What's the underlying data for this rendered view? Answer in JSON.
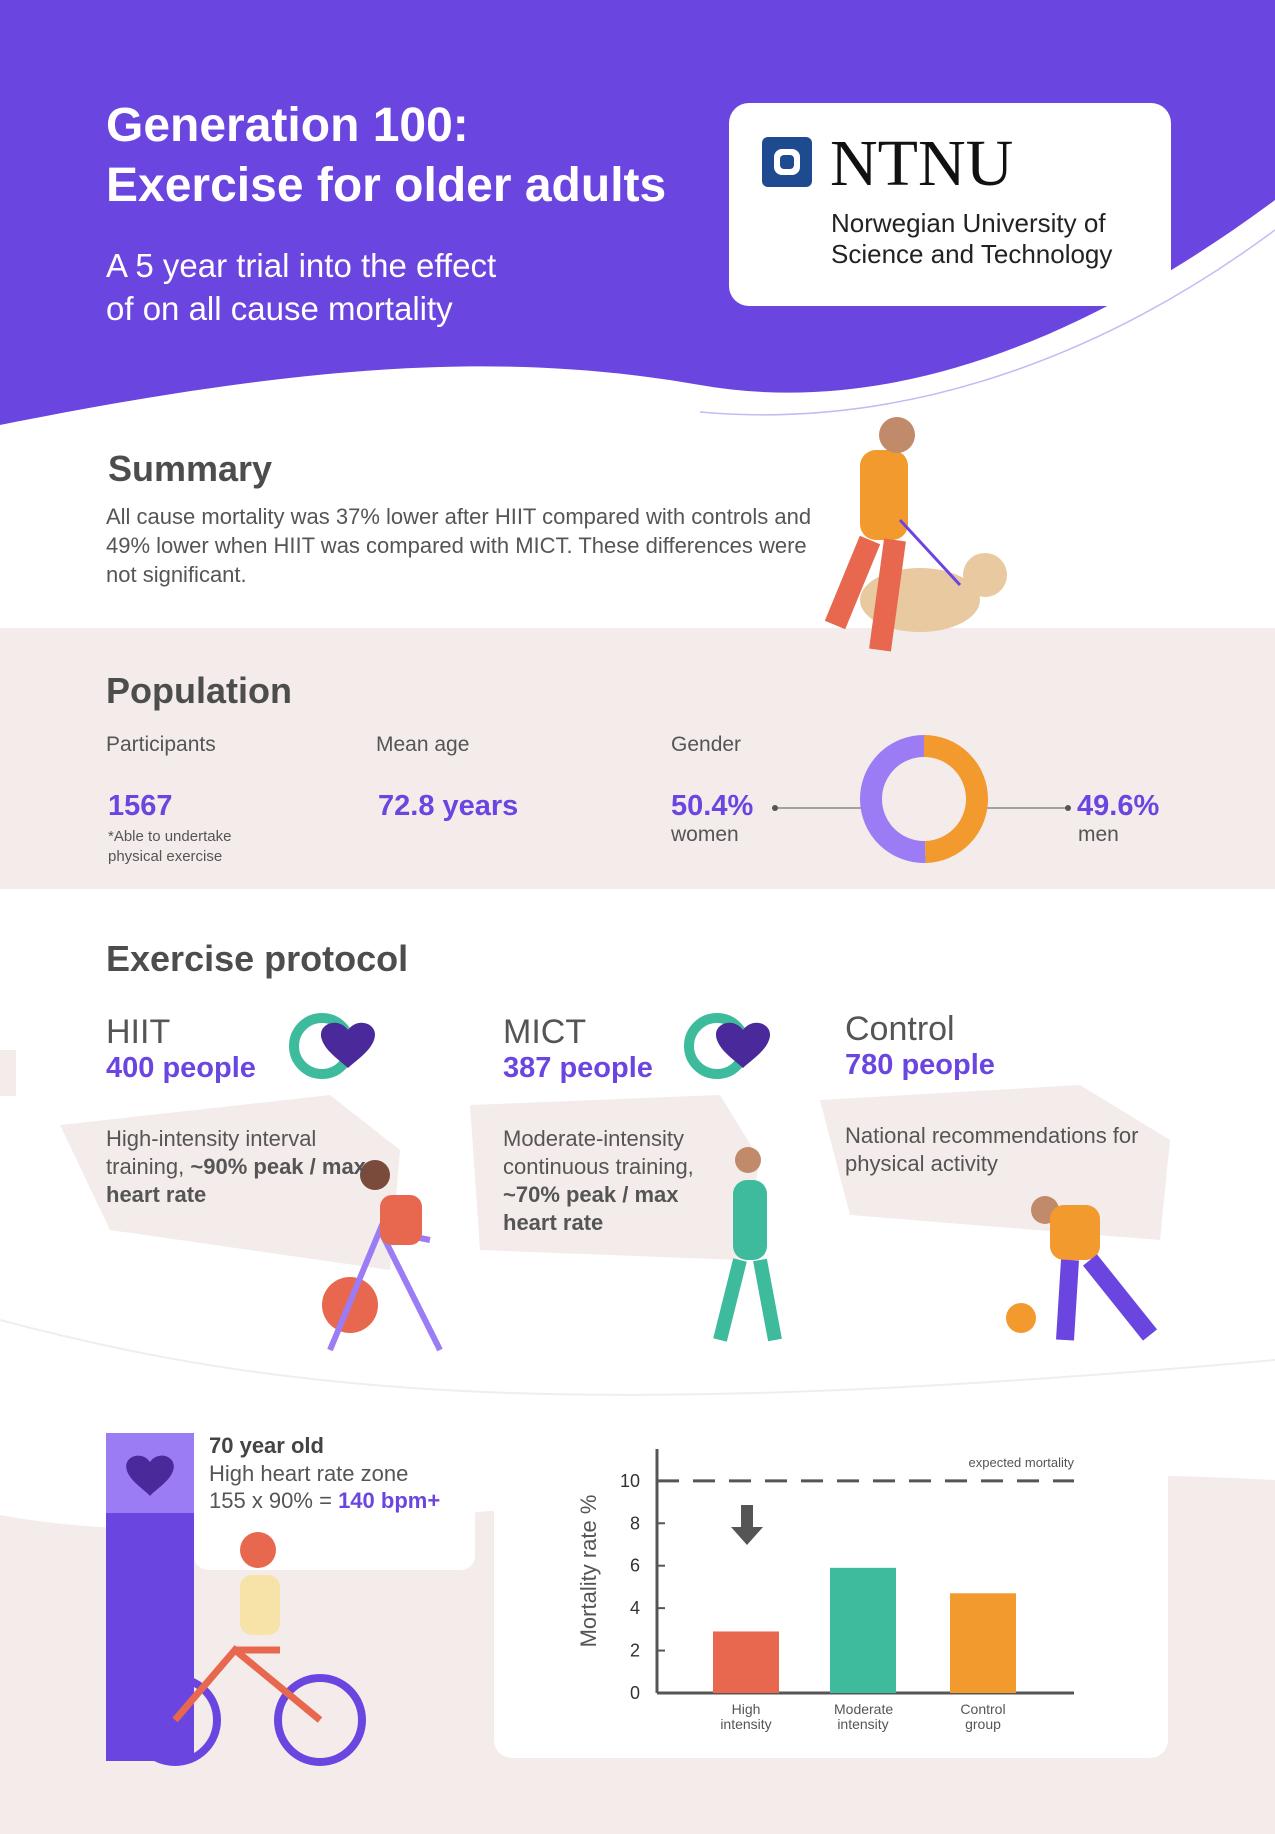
{
  "header": {
    "title": [
      "Generation 100:",
      "Exercise for older adults"
    ],
    "subtitle": [
      "A 5 year trial into the effect",
      "of on all cause mortality"
    ],
    "logo": {
      "name": "NTNU",
      "lines": [
        "Norwegian University of",
        "Science and Technology"
      ]
    }
  },
  "summary": {
    "heading": "Summary",
    "text": "All cause mortality was 37% lower after HIIT compared with controls and 49% lower when HIIT was compared with MICT. These differences were not significant."
  },
  "population": {
    "heading": "Population",
    "participants": {
      "label": "Participants",
      "value": "1567",
      "note": [
        "*Able to undertake",
        "physical exercise"
      ]
    },
    "mean_age": {
      "label": "Mean age",
      "value": "72.8 years"
    },
    "gender": {
      "label": "Gender",
      "colors": [
        "#9b7cf5",
        "#f29a2e"
      ],
      "groups": [
        {
          "name": "women",
          "value": 50.4,
          "value_label": "50.4%"
        },
        {
          "name": "men",
          "value": 49.6,
          "value_label": "49.6%"
        }
      ]
    }
  },
  "protocol": {
    "heading": "Exercise protocol",
    "groups": [
      {
        "name": "HIIT",
        "count": "400 people",
        "description": "High-intensity interval training,",
        "description_bold": "~90% peak / max heart rate"
      },
      {
        "name": "MICT",
        "count": "387 people",
        "description": "Moderate-intensity continuous training,",
        "description_bold": "~70% peak / max heart rate"
      },
      {
        "name": "Control",
        "count": "780 people",
        "description": "National recommendations for physical activity"
      }
    ]
  },
  "heart_rate": {
    "age": "70 year old",
    "zone": "High heart rate zone",
    "formula": "155 x 90% =",
    "result": "140",
    "unit": "bpm+"
  },
  "chart_data": {
    "type": "bar",
    "categories": [
      "High intensity",
      "Moderate intensity",
      "Control group"
    ],
    "values": [
      2.9,
      5.9,
      4.7
    ],
    "colors": [
      "#e8674f",
      "#3dbb9c",
      "#f29a2e"
    ],
    "ylabel": "Mortality rate %",
    "ylim": [
      0,
      11.5
    ],
    "yticks": [
      0,
      2,
      4,
      6,
      8,
      10
    ],
    "reference_line": {
      "value": 10,
      "label": "expected mortality"
    }
  }
}
